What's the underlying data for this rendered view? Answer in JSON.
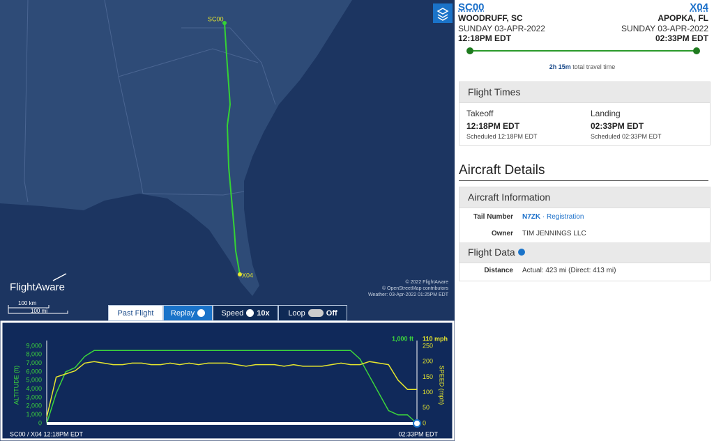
{
  "map": {
    "origin_label": "SC00",
    "dest_label": "X04",
    "logo": "FlightAware",
    "scale_km": "100 km",
    "scale_mi": "100 mi",
    "attribution": [
      "© 2022 FlightAware",
      "© OpenStreetMap contributors",
      "Weather: 03-Apr-2022 01:25PM EDT"
    ]
  },
  "controls": {
    "past_flight": "Past Flight",
    "replay": "Replay",
    "speed": "Speed",
    "speed_value": "10x",
    "loop": "Loop",
    "loop_state": "Off"
  },
  "chart_data": {
    "type": "line",
    "y_label": "ALTITUDE (ft)",
    "y2_label": "SPEED (mph)",
    "current_altitude": "1,000 ft",
    "current_speed": "110 mph",
    "footer_left": "SC00 / X04 12:18PM EDT",
    "footer_right": "02:33PM EDT",
    "ylim": [
      0,
      9000
    ],
    "yticks": [
      0,
      {
        "value": 1000,
        "label": "1,000"
      },
      {
        "value": 2000,
        "label": "2,000"
      },
      {
        "value": 3000,
        "label": "3,000"
      },
      {
        "value": 4000,
        "label": "4,000"
      },
      {
        "value": 5000,
        "label": "5,000"
      },
      {
        "value": 6000,
        "label": "6,000"
      },
      {
        "value": 7000,
        "label": "7,000"
      },
      {
        "value": 8000,
        "label": "8,000"
      },
      {
        "value": 9000,
        "label": "9,000"
      }
    ],
    "y2lim": [
      0,
      250
    ],
    "y2ticks": [
      0,
      50,
      100,
      150,
      200,
      250
    ],
    "series": [
      {
        "color": "#3cd43c",
        "values": [
          0,
          3500,
          6000,
          6500,
          7800,
          8500,
          8500,
          8500,
          8500,
          8500,
          8500,
          8500,
          8500,
          8500,
          8500,
          8500,
          8500,
          8500,
          8500,
          8500,
          8500,
          8500,
          8500,
          8500,
          8500,
          8500,
          8500,
          8500,
          8500,
          8500,
          8500,
          8500,
          8500,
          7500,
          5500,
          3500,
          1500,
          1000,
          1000,
          0
        ]
      },
      {
        "color": "#e6e62e",
        "axis": "y2",
        "values": [
          20,
          150,
          160,
          170,
          195,
          200,
          195,
          190,
          190,
          195,
          195,
          190,
          190,
          195,
          190,
          195,
          190,
          195,
          195,
          195,
          190,
          185,
          190,
          190,
          190,
          185,
          190,
          185,
          185,
          185,
          190,
          195,
          190,
          190,
          200,
          195,
          190,
          140,
          110,
          110
        ]
      }
    ]
  },
  "summary": {
    "origin_code": "SC00",
    "dest_code": "X04",
    "origin_city": "WOODRUFF, SC",
    "dest_city": "APOPKA, FL",
    "origin_date": "SUNDAY 03-APR-2022",
    "dest_date": "SUNDAY 03-APR-2022",
    "origin_time": "12:18PM EDT",
    "dest_time": "02:33PM EDT",
    "duration": "2h 15m",
    "duration_note": "total travel time"
  },
  "flight_times": {
    "title": "Flight Times",
    "takeoff_label": "Takeoff",
    "takeoff_time": "12:18PM EDT",
    "takeoff_scheduled": "Scheduled 12:18PM EDT",
    "landing_label": "Landing",
    "landing_time": "02:33PM EDT",
    "landing_scheduled": "Scheduled 02:33PM EDT"
  },
  "aircraft": {
    "title": "Aircraft Details",
    "info_title": "Aircraft Information",
    "tail_label": "Tail Number",
    "tail_value": "N7ZK",
    "registration": "Registration",
    "owner_label": "Owner",
    "owner_value": "TIM JENNINGS LLC",
    "data_title": "Flight Data",
    "distance_label": "Distance",
    "distance_value": "Actual: 423 mi (Direct: 413 mi)"
  }
}
